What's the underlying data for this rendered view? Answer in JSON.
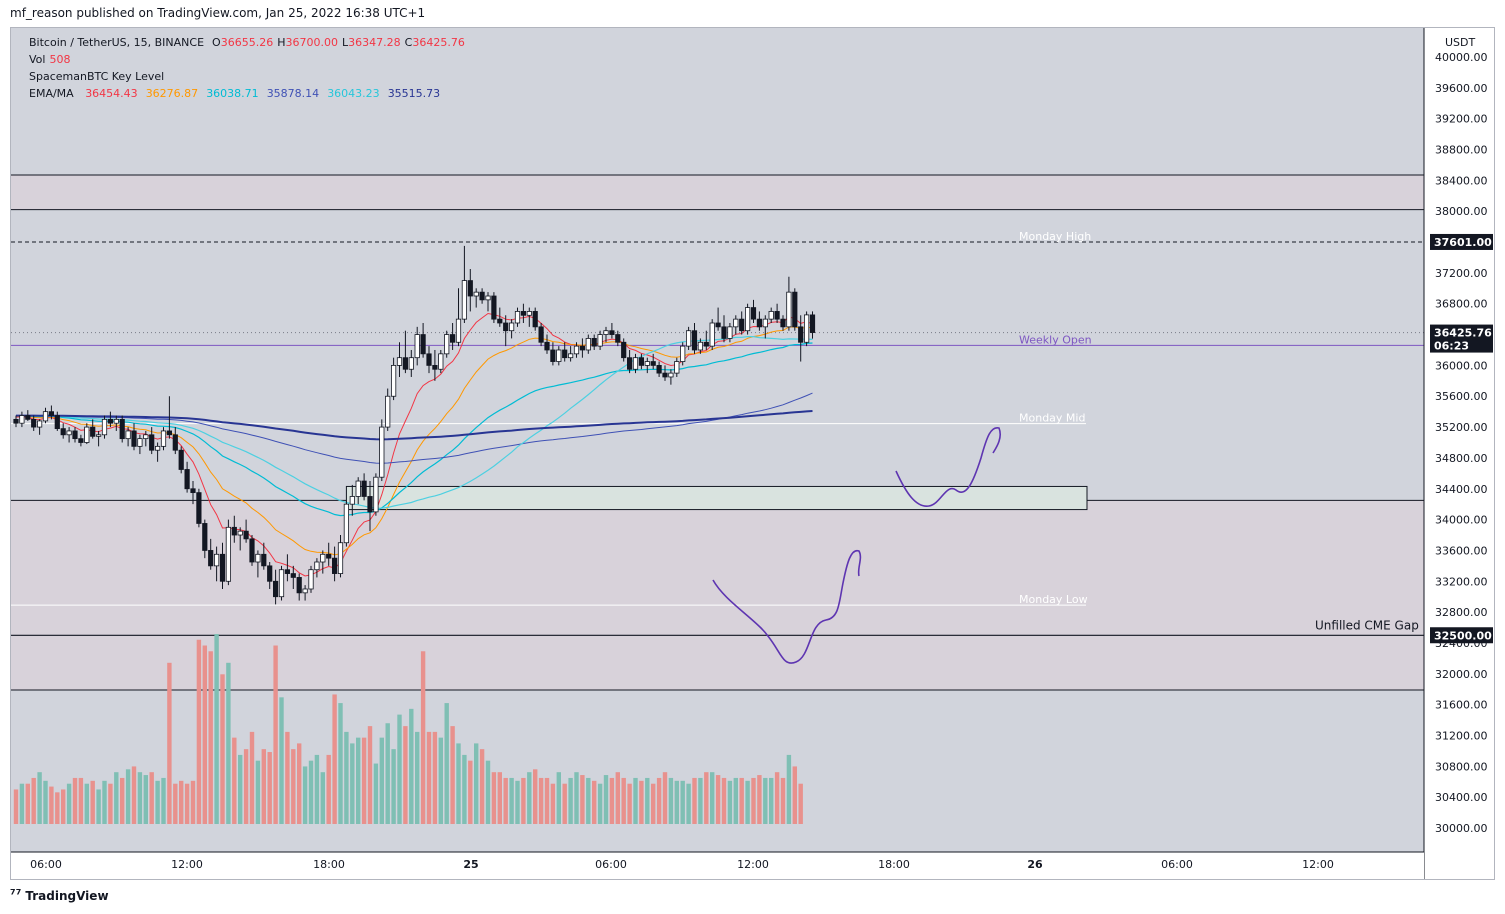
{
  "header": {
    "publish_text": "mf_reason published on TradingView.com, Jan 25, 2022 16:38 UTC+1"
  },
  "legend": {
    "symbol": "Bitcoin / TetherUS, 15, BINANCE",
    "o_label": "O",
    "o_value": "36655.26",
    "h_label": "H",
    "h_value": "36700.00",
    "l_label": "L",
    "l_value": "36347.28",
    "c_label": "C",
    "c_value": "36425.76",
    "vol_label": "Vol",
    "vol_value": "508",
    "indicator": "SpacemanBTC Key Level",
    "ema_label": "EMA/MA",
    "ema_values": [
      {
        "value": "36454.43",
        "color": "#f23645"
      },
      {
        "value": "36276.87",
        "color": "#ff9800"
      },
      {
        "value": "36038.71",
        "color": "#00bcd4"
      },
      {
        "value": "35878.14",
        "color": "#3f51b5"
      },
      {
        "value": "36043.23",
        "color": "#26c6da"
      },
      {
        "value": "35515.73",
        "color": "#283593"
      }
    ]
  },
  "footer": {
    "brand": "TradingView"
  },
  "chart_data": {
    "type": "candlestick",
    "y_axis_unit": "USDT",
    "ylim": [
      29800,
      40100
    ],
    "y_ticks": [
      30000,
      30400,
      30800,
      31200,
      31600,
      32000,
      32400,
      32800,
      33200,
      33600,
      34000,
      34400,
      34800,
      35200,
      35600,
      36000,
      36400,
      36800,
      37200,
      37600,
      38000,
      38400,
      38800,
      39200,
      39600,
      40000
    ],
    "x_ticks": [
      "06:00",
      "12:00",
      "18:00",
      "25",
      "06:00",
      "12:00",
      "18:00",
      "26",
      "06:00",
      "12:00"
    ],
    "price_tags": [
      {
        "value": "37601.00",
        "price": 37601
      },
      {
        "value": "36425.76",
        "price": 36425.76,
        "sub": "06:23"
      },
      {
        "value": "32500.00",
        "price": 32500
      }
    ],
    "key_levels": [
      {
        "label": "Monday High",
        "price": 37601
      },
      {
        "label": "Weekly Open",
        "price": 36260
      },
      {
        "label": "Monday Mid",
        "price": 35245
      },
      {
        "label": "Monday Low",
        "price": 32890
      },
      {
        "label": "Unfilled CME Gap",
        "price": 32500
      }
    ],
    "zones": [
      {
        "from": 38020,
        "to": 38470
      },
      {
        "from": 31790,
        "to": 32500
      },
      {
        "from": 32500,
        "to": 34250
      }
    ],
    "demand_box": {
      "from": 34130,
      "to": 34430
    },
    "candles": [
      [
        35300,
        35350,
        35200,
        35250
      ],
      [
        35250,
        35400,
        35200,
        35350
      ],
      [
        35350,
        35420,
        35280,
        35300
      ],
      [
        35300,
        35350,
        35150,
        35200
      ],
      [
        35200,
        35300,
        35100,
        35280
      ],
      [
        35280,
        35450,
        35250,
        35400
      ],
      [
        35400,
        35480,
        35300,
        35350
      ],
      [
        35350,
        35400,
        35150,
        35180
      ],
      [
        35180,
        35250,
        35050,
        35100
      ],
      [
        35100,
        35200,
        35000,
        35150
      ],
      [
        35150,
        35200,
        35000,
        35050
      ],
      [
        35050,
        35100,
        34950,
        35000
      ],
      [
        35000,
        35250,
        34980,
        35200
      ],
      [
        35200,
        35300,
        35050,
        35080
      ],
      [
        35080,
        35150,
        34950,
        35100
      ],
      [
        35100,
        35350,
        35050,
        35300
      ],
      [
        35300,
        35400,
        35200,
        35250
      ],
      [
        35250,
        35350,
        35150,
        35300
      ],
      [
        35300,
        35350,
        35000,
        35050
      ],
      [
        35050,
        35200,
        34950,
        35150
      ],
      [
        35150,
        35250,
        34900,
        34950
      ],
      [
        34950,
        35100,
        34850,
        35050
      ],
      [
        35050,
        35150,
        34950,
        35100
      ],
      [
        35100,
        35200,
        34850,
        34900
      ],
      [
        34900,
        35000,
        34750,
        34950
      ],
      [
        34950,
        35200,
        34900,
        35150
      ],
      [
        35150,
        35600,
        35050,
        35100
      ],
      [
        35100,
        35200,
        34850,
        34900
      ],
      [
        34900,
        34950,
        34600,
        34650
      ],
      [
        34650,
        34750,
        34350,
        34400
      ],
      [
        34400,
        34500,
        34200,
        34350
      ],
      [
        34350,
        34400,
        33900,
        33950
      ],
      [
        33950,
        34000,
        33500,
        33600
      ],
      [
        33600,
        33750,
        33350,
        33400
      ],
      [
        33400,
        33650,
        33200,
        33550
      ],
      [
        33550,
        33700,
        33100,
        33200
      ],
      [
        33200,
        34000,
        33150,
        33900
      ],
      [
        33900,
        34050,
        33700,
        33800
      ],
      [
        33800,
        33900,
        33600,
        33850
      ],
      [
        33850,
        34000,
        33700,
        33750
      ],
      [
        33750,
        33800,
        33400,
        33450
      ],
      [
        33450,
        33600,
        33250,
        33550
      ],
      [
        33550,
        33700,
        33350,
        33400
      ],
      [
        33400,
        33450,
        33100,
        33200
      ],
      [
        33200,
        33350,
        32900,
        33000
      ],
      [
        33000,
        33400,
        32950,
        33350
      ],
      [
        33350,
        33550,
        33200,
        33300
      ],
      [
        33300,
        33400,
        33100,
        33250
      ],
      [
        33250,
        33300,
        32950,
        33050
      ],
      [
        33050,
        33150,
        32950,
        33100
      ],
      [
        33100,
        33400,
        33050,
        33350
      ],
      [
        33350,
        33500,
        33250,
        33450
      ],
      [
        33450,
        33600,
        33300,
        33550
      ],
      [
        33550,
        33700,
        33400,
        33500
      ],
      [
        33500,
        33650,
        33200,
        33300
      ],
      [
        33300,
        33800,
        33250,
        33700
      ],
      [
        33700,
        34250,
        33650,
        34200
      ],
      [
        34200,
        34450,
        34050,
        34300
      ],
      [
        34300,
        34550,
        34200,
        34500
      ],
      [
        34500,
        34600,
        34250,
        34300
      ],
      [
        34300,
        34500,
        33850,
        34100
      ],
      [
        34100,
        34600,
        34050,
        34550
      ],
      [
        34550,
        35300,
        34500,
        35200
      ],
      [
        35200,
        35700,
        35150,
        35600
      ],
      [
        35600,
        36100,
        35550,
        36000
      ],
      [
        36000,
        36300,
        35850,
        36100
      ],
      [
        36100,
        36450,
        35900,
        35950
      ],
      [
        35950,
        36200,
        35850,
        36100
      ],
      [
        36100,
        36500,
        36000,
        36400
      ],
      [
        36400,
        36550,
        36100,
        36150
      ],
      [
        36150,
        36250,
        35900,
        36000
      ],
      [
        36000,
        36200,
        35800,
        35950
      ],
      [
        35950,
        36200,
        35900,
        36150
      ],
      [
        36150,
        36450,
        36100,
        36400
      ],
      [
        36400,
        36550,
        36200,
        36300
      ],
      [
        36300,
        37000,
        36250,
        36600
      ],
      [
        36600,
        37550,
        36550,
        37100
      ],
      [
        37100,
        37250,
        36700,
        36900
      ],
      [
        36900,
        37000,
        36750,
        36950
      ],
      [
        36950,
        37000,
        36800,
        36850
      ],
      [
        36850,
        36950,
        36700,
        36900
      ],
      [
        36900,
        36950,
        36550,
        36600
      ],
      [
        36600,
        36750,
        36500,
        36550
      ],
      [
        36550,
        36650,
        36250,
        36450
      ],
      [
        36450,
        36600,
        36350,
        36550
      ],
      [
        36550,
        36750,
        36500,
        36700
      ],
      [
        36700,
        36800,
        36550,
        36650
      ],
      [
        36650,
        36750,
        36500,
        36700
      ],
      [
        36700,
        36750,
        36450,
        36500
      ],
      [
        36500,
        36550,
        36250,
        36300
      ],
      [
        36300,
        36400,
        36150,
        36200
      ],
      [
        36200,
        36300,
        36000,
        36050
      ],
      [
        36050,
        36250,
        36000,
        36200
      ],
      [
        36200,
        36300,
        36050,
        36100
      ],
      [
        36100,
        36250,
        36050,
        36150
      ],
      [
        36150,
        36300,
        36100,
        36250
      ],
      [
        36250,
        36350,
        36100,
        36200
      ],
      [
        36200,
        36400,
        36150,
        36350
      ],
      [
        36350,
        36400,
        36200,
        36250
      ],
      [
        36250,
        36450,
        36200,
        36400
      ],
      [
        36400,
        36500,
        36300,
        36450
      ],
      [
        36450,
        36550,
        36350,
        36400
      ],
      [
        36400,
        36450,
        36250,
        36300
      ],
      [
        36300,
        36350,
        36050,
        36100
      ],
      [
        36100,
        36200,
        35900,
        35950
      ],
      [
        35950,
        36150,
        35900,
        36100
      ],
      [
        36100,
        36150,
        35950,
        36000
      ],
      [
        36000,
        36100,
        35900,
        36050
      ],
      [
        36050,
        36150,
        35950,
        36000
      ],
      [
        36000,
        36050,
        35850,
        35900
      ],
      [
        35900,
        36000,
        35800,
        35850
      ],
      [
        35850,
        35950,
        35750,
        35900
      ],
      [
        35900,
        36100,
        35850,
        36050
      ],
      [
        36050,
        36300,
        36000,
        36250
      ],
      [
        36250,
        36500,
        36200,
        36450
      ],
      [
        36450,
        36550,
        36150,
        36200
      ],
      [
        36200,
        36350,
        36150,
        36300
      ],
      [
        36300,
        36450,
        36200,
        36250
      ],
      [
        36250,
        36600,
        36200,
        36550
      ],
      [
        36550,
        36750,
        36450,
        36500
      ],
      [
        36500,
        36650,
        36300,
        36350
      ],
      [
        36350,
        36550,
        36300,
        36500
      ],
      [
        36500,
        36650,
        36400,
        36600
      ],
      [
        36600,
        36700,
        36400,
        36450
      ],
      [
        36450,
        36800,
        36400,
        36750
      ],
      [
        36750,
        36850,
        36550,
        36600
      ],
      [
        36600,
        36700,
        36450,
        36500
      ],
      [
        36500,
        36650,
        36350,
        36600
      ],
      [
        36600,
        36750,
        36550,
        36700
      ],
      [
        36700,
        36800,
        36550,
        36600
      ],
      [
        36600,
        36650,
        36450,
        36500
      ],
      [
        36500,
        37150,
        36450,
        36950
      ],
      [
        36950,
        37000,
        36450,
        36500
      ],
      [
        36500,
        36650,
        36050,
        36300
      ],
      [
        36300,
        36700,
        36250,
        36655
      ],
      [
        36655,
        36700,
        36347,
        36426
      ]
    ],
    "volumes": [
      60,
      70,
      70,
      80,
      90,
      75,
      65,
      55,
      60,
      70,
      80,
      80,
      70,
      75,
      60,
      75,
      70,
      90,
      80,
      95,
      100,
      90,
      85,
      90,
      75,
      80,
      280,
      70,
      75,
      70,
      75,
      320,
      310,
      300,
      330,
      260,
      280,
      150,
      120,
      130,
      160,
      110,
      130,
      125,
      310,
      220,
      160,
      130,
      140,
      100,
      110,
      120,
      90,
      120,
      225,
      210,
      160,
      140,
      150,
      150,
      170,
      105,
      150,
      175,
      130,
      190,
      170,
      200,
      160,
      300,
      160,
      160,
      150,
      210,
      170,
      140,
      120,
      110,
      140,
      130,
      110,
      90,
      90,
      80,
      80,
      75,
      80,
      90,
      95,
      80,
      80,
      70,
      90,
      70,
      80,
      90,
      85,
      80,
      75,
      70,
      85,
      80,
      90,
      80,
      70,
      80,
      75,
      80,
      70,
      80,
      90,
      80,
      75,
      75,
      70,
      80,
      80,
      90,
      90,
      85,
      80,
      75,
      80,
      80,
      75,
      80,
      85,
      80,
      80,
      90,
      80,
      120,
      100,
      70
    ]
  }
}
